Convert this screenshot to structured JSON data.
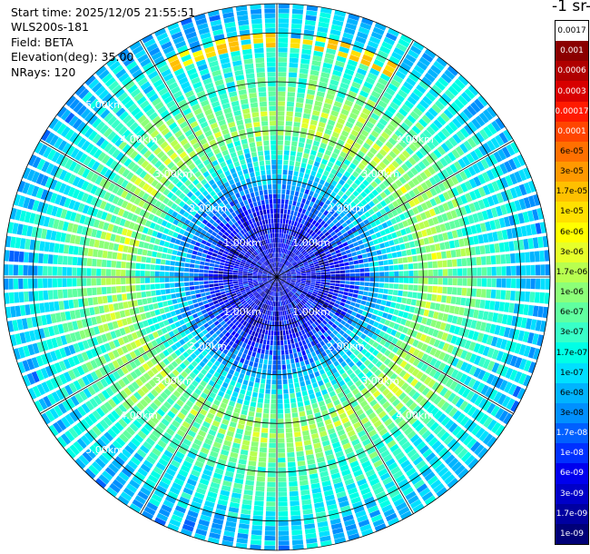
{
  "header": {
    "start_time": "Start time: 2025/12/05 21:55:51",
    "instrument": "WLS200s-181",
    "field": "Field: BETA",
    "elevation": "Elevation(deg): 35.00",
    "nrays": "NRays: 120"
  },
  "colorbar": {
    "unit": "-1 sr-",
    "labels": [
      "0.0017",
      "0.001",
      "0.0006",
      "0.0003",
      "0.00017",
      "0.0001",
      "6e-05",
      "3e-05",
      "1.7e-05",
      "1e-05",
      "6e-06",
      "3e-06",
      "1.7e-06",
      "1e-06",
      "6e-07",
      "3e-07",
      "1.7e-07",
      "1e-07",
      "6e-08",
      "3e-08",
      "1.7e-08",
      "1e-08",
      "6e-09",
      "3e-09",
      "1.7e-09",
      "1e-09"
    ],
    "colors": [
      "#ffffff",
      "#8b0000",
      "#b00000",
      "#d80000",
      "#ff1a00",
      "#ff4500",
      "#ff7000",
      "#ff9900",
      "#ffc000",
      "#ffe000",
      "#ffff00",
      "#e6ff2a",
      "#b8ff50",
      "#8cff78",
      "#60ffa0",
      "#38ffc8",
      "#00ffe6",
      "#00e0ff",
      "#00b4ff",
      "#0090ff",
      "#0060ff",
      "#0030ff",
      "#0000ee",
      "#0000c8",
      "#0000a0",
      "#000078"
    ]
  },
  "chart_data": {
    "type": "heatmap",
    "projection": "polar (PPI)",
    "rays": 120,
    "range_km": [
      0,
      5.6
    ],
    "range_rings_km": [
      1,
      2,
      3,
      4,
      5
    ],
    "ring_labels": [
      "1.00km",
      "2.00km",
      "3.00km",
      "4.00km",
      "5.00km"
    ],
    "azimuth_lines_deg": [
      0,
      30,
      60,
      90,
      120,
      150,
      180,
      210,
      240,
      270,
      300,
      330
    ],
    "field": "BETA",
    "dominant_levels_by_range": [
      {
        "range_km": [
          0,
          1.5
        ],
        "level": "1.7e-09 to 1e-08"
      },
      {
        "range_km": [
          1.5,
          2.5
        ],
        "level": "1e-08 to 6e-08"
      },
      {
        "range_km": [
          2.5,
          4.0
        ],
        "level": "1.7e-07 to 1.7e-06"
      },
      {
        "range_km": [
          4.0,
          5.6
        ],
        "level": "3e-08 to 3e-07"
      }
    ],
    "notable_high_values": "1.7e-05 to 3e-05 near 5.0 km to the north"
  }
}
